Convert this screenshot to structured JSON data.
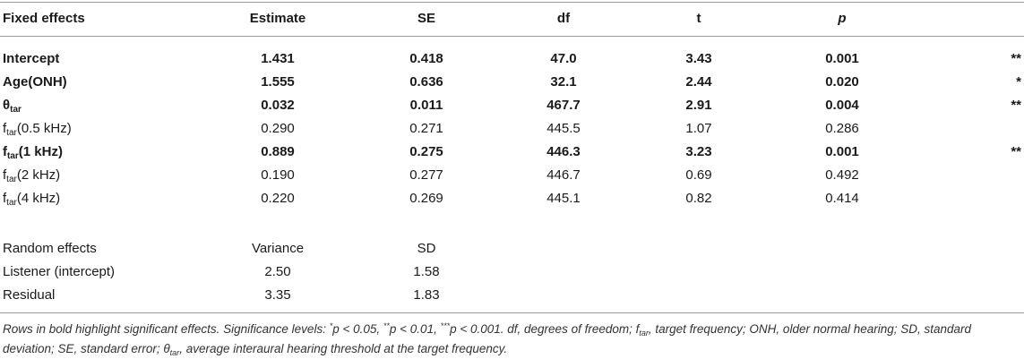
{
  "header": {
    "col0": "Fixed effects",
    "col1": "Estimate",
    "col2": "SE",
    "col3": "df",
    "col4": "t",
    "col5": "p"
  },
  "fixed_rows": [
    {
      "label": "Intercept",
      "sub": "",
      "suffix": "",
      "estimate": "1.431",
      "se": "0.418",
      "df": "47.0",
      "t": "3.43",
      "p": "0.001",
      "sig": "**",
      "bold": true
    },
    {
      "label": "Age(ONH)",
      "sub": "",
      "suffix": "",
      "estimate": "1.555",
      "se": "0.636",
      "df": "32.1",
      "t": "2.44",
      "p": "0.020",
      "sig": "*",
      "bold": true
    },
    {
      "label": "θ",
      "sub": "tar",
      "suffix": "",
      "estimate": "0.032",
      "se": "0.011",
      "df": "467.7",
      "t": "2.91",
      "p": "0.004",
      "sig": "**",
      "bold": true
    },
    {
      "label": "f",
      "sub": "tar",
      "suffix": "(0.5 kHz)",
      "estimate": "0.290",
      "se": "0.271",
      "df": "445.5",
      "t": "1.07",
      "p": "0.286",
      "sig": "",
      "bold": false
    },
    {
      "label": "f",
      "sub": "tar",
      "suffix": "(1 kHz)",
      "estimate": "0.889",
      "se": "0.275",
      "df": "446.3",
      "t": "3.23",
      "p": "0.001",
      "sig": "**",
      "bold": true
    },
    {
      "label": "f",
      "sub": "tar",
      "suffix": "(2 kHz)",
      "estimate": "0.190",
      "se": "0.277",
      "df": "446.7",
      "t": "0.69",
      "p": "0.492",
      "sig": "",
      "bold": false
    },
    {
      "label": "f",
      "sub": "tar",
      "suffix": "(4 kHz)",
      "estimate": "0.220",
      "se": "0.269",
      "df": "445.1",
      "t": "0.82",
      "p": "0.414",
      "sig": "",
      "bold": false
    }
  ],
  "random_header": {
    "col0": "Random effects",
    "col1": "Variance",
    "col2": "SD"
  },
  "random_rows": [
    {
      "label": "Listener (intercept)",
      "variance": "2.50",
      "sd": "1.58"
    },
    {
      "label": "Residual",
      "variance": "3.35",
      "sd": "1.83"
    }
  ],
  "footnote": {
    "line1_a": "Rows in bold highlight significant effects. Significance levels: ",
    "sig1_mark": "*",
    "sig1_text": "p < 0.05, ",
    "sig2_mark": "**",
    "sig2_text": "p < 0.01, ",
    "sig3_mark": "***",
    "sig3_text": "p < 0.001. df, degrees of freedom; f",
    "ftar_sub": "tar",
    "line1_b": ", target frequency; ONH, older normal hearing; SD, standard",
    "line2_a": "deviation; SE, standard error; θ",
    "theta_sub": "tar",
    "line2_b": ", average interaural hearing threshold at the target frequency."
  }
}
